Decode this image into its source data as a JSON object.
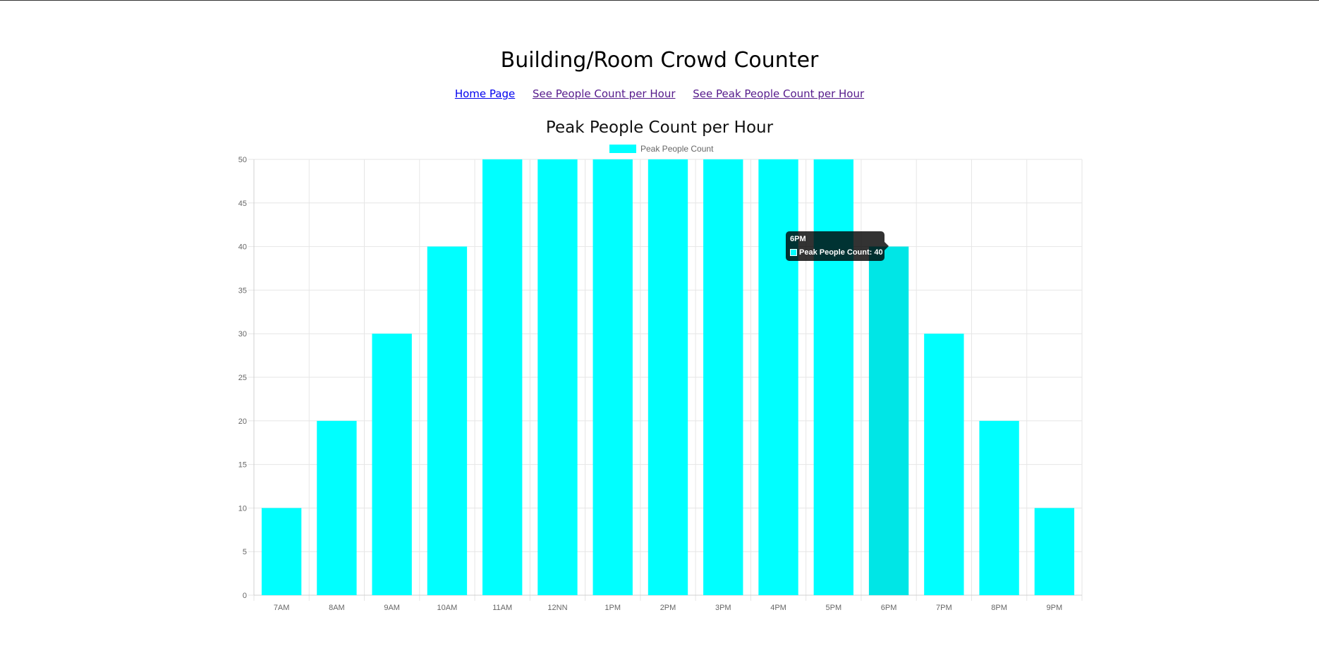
{
  "page": {
    "title": "Building/Room Crowd Counter"
  },
  "nav": {
    "links": [
      {
        "label": "Home Page",
        "visited": false
      },
      {
        "label": "See People Count per Hour",
        "visited": true
      },
      {
        "label": "See Peak People Count per Hour",
        "visited": true
      }
    ]
  },
  "colors": {
    "bar": "#00ffff",
    "bar_hover": "#00e6e6",
    "grid": "#e6e6e6",
    "tick_text": "#666666"
  },
  "tooltip": {
    "title": "6PM",
    "label": "Peak People Count: 40"
  },
  "chart_data": {
    "type": "bar",
    "title": "Peak People Count per Hour",
    "legend_position": "top",
    "grid": true,
    "categories": [
      "7AM",
      "8AM",
      "9AM",
      "10AM",
      "11AM",
      "12NN",
      "1PM",
      "2PM",
      "3PM",
      "4PM",
      "5PM",
      "6PM",
      "7PM",
      "8PM",
      "9PM"
    ],
    "series": [
      {
        "name": "Peak People Count",
        "values": [
          10,
          20,
          30,
          40,
          50,
          50,
          50,
          50,
          50,
          50,
          50,
          40,
          30,
          20,
          10
        ]
      }
    ],
    "ylim": [
      0,
      50
    ],
    "yticks": [
      0,
      5,
      10,
      15,
      20,
      25,
      30,
      35,
      40,
      45,
      50
    ],
    "highlighted_category": "6PM"
  }
}
